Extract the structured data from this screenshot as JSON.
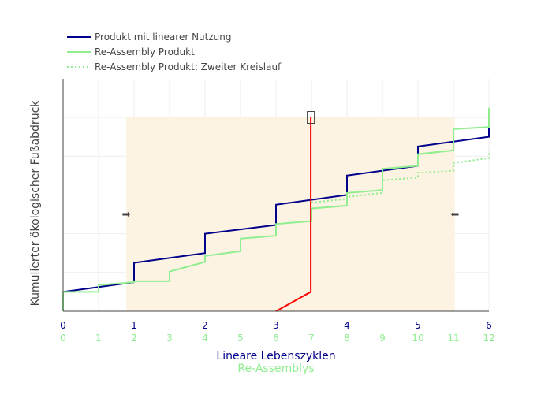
{
  "chart_data": {
    "type": "line",
    "title": "",
    "ylabel": "Kumulierter ökologischer Fußabdruck",
    "x_primary": {
      "label": "Lineare Lebenszyklen",
      "ticks": [
        "0",
        "1",
        "2",
        "3",
        "4",
        "5",
        "6"
      ],
      "range": [
        0,
        6
      ],
      "color": "#00008b"
    },
    "x_secondary": {
      "label": "Re-Assemblys",
      "ticks": [
        "0",
        "1",
        "2",
        "3",
        "4",
        "5",
        "6",
        "7",
        "8",
        "9",
        "10",
        "11",
        "12"
      ],
      "range": [
        0,
        12
      ],
      "color": "#90ee90"
    },
    "ylim": [
      0,
      100
    ],
    "grid": true,
    "legend_position": "top-left",
    "shaded_region": {
      "x_start": 0.89,
      "x_end": 5.52,
      "y_top": 100,
      "color": "#fdf3e3"
    },
    "arrows": [
      {
        "symbol": "➡",
        "x": 0.89,
        "y": 50.5
      },
      {
        "symbol": "⬅",
        "x": 5.52,
        "y": 50.5
      }
    ],
    "marker_box": {
      "x": 3.49,
      "y": 100
    },
    "series": [
      {
        "name": "Produkt mit linearer Nutzung",
        "color": "#00008b",
        "dash": "solid",
        "points": [
          [
            0,
            10
          ],
          [
            1,
            15
          ],
          [
            1,
            25
          ],
          [
            2,
            30
          ],
          [
            2,
            40
          ],
          [
            3,
            44.5
          ],
          [
            3,
            55
          ],
          [
            4,
            60
          ],
          [
            4,
            70
          ],
          [
            5,
            75
          ],
          [
            5,
            85
          ],
          [
            6,
            90
          ],
          [
            6,
            95
          ]
        ]
      },
      {
        "name": "Re-Assembly Produkt",
        "color": "#90ee90",
        "dash": "solid",
        "points": [
          [
            0,
            0
          ],
          [
            0,
            10
          ],
          [
            0.5,
            10
          ],
          [
            0.5,
            13.5
          ],
          [
            1,
            15
          ],
          [
            1,
            15.5
          ],
          [
            1.5,
            15.5
          ],
          [
            1.5,
            20.5
          ],
          [
            2,
            25.5
          ],
          [
            2,
            28.5
          ],
          [
            2.5,
            31
          ],
          [
            2.5,
            37.5
          ],
          [
            3,
            39
          ],
          [
            3,
            45
          ],
          [
            3.5,
            46.5
          ],
          [
            3.5,
            53
          ],
          [
            4,
            54.5
          ],
          [
            4,
            61
          ],
          [
            4.5,
            62.5
          ],
          [
            4.5,
            73.5
          ],
          [
            5,
            75
          ],
          [
            5,
            81
          ],
          [
            5.5,
            83
          ],
          [
            5.5,
            94
          ],
          [
            6,
            95
          ],
          [
            6,
            105
          ]
        ]
      },
      {
        "name": "Re-Assembly Produkt: Zweiter Kreislauf",
        "color": "#90ee90",
        "dash": "dotted",
        "points": [
          [
            3.5,
            56
          ],
          [
            4,
            58
          ],
          [
            4,
            59
          ],
          [
            4.5,
            61
          ],
          [
            4.5,
            67.5
          ],
          [
            5,
            69
          ],
          [
            5,
            71.5
          ],
          [
            5.5,
            72.5
          ],
          [
            5.5,
            76.5
          ],
          [
            6,
            79
          ],
          [
            6,
            83
          ]
        ]
      },
      {
        "name": "",
        "color": "#ff0000",
        "dash": "solid",
        "points": [
          [
            3,
            0
          ],
          [
            3.49,
            10
          ],
          [
            3.49,
            100
          ]
        ]
      }
    ]
  }
}
